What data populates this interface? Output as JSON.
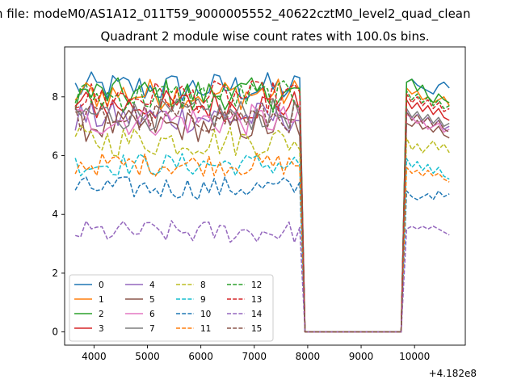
{
  "figure": {
    "suptitle": "n file: modeM0/AS1A12_011T59_9000005552_40622cztM0_level2_quad_clean"
  },
  "chart_data": {
    "type": "line",
    "title": "Quadrant 2 module wise count rates with 100.0s bins.",
    "xlabel": "",
    "ylabel": "",
    "x_offset_label": "+4.182e8",
    "xlim": [
      3450,
      10950
    ],
    "ylim": [
      -0.45,
      9.7
    ],
    "xticks": [
      4000,
      5000,
      6000,
      7000,
      8000,
      9000,
      10000
    ],
    "yticks": [
      0,
      2,
      4,
      6,
      8
    ],
    "grid": false,
    "legend_position": "lower-left",
    "legend_columns": 4,
    "x_start": 3650,
    "x_step": 100,
    "n_points": 71,
    "gap_start_index": 43,
    "gap_end_index": 61,
    "colors": [
      "#1f77b4",
      "#ff7f0e",
      "#2ca02c",
      "#d62728",
      "#9467bd",
      "#8c564b",
      "#e377c2",
      "#7f7f7f",
      "#bcbd22",
      "#17becf",
      "#1f77b4",
      "#ff7f0e",
      "#2ca02c",
      "#d62728",
      "#9467bd",
      "#8c564b"
    ],
    "series": [
      {
        "name": "0",
        "dashed": false,
        "mean": 8.3,
        "values_after_gap": [
          8.5,
          8.6,
          8.4,
          8.3,
          8.2,
          8.1,
          8.4,
          8.5,
          8.3,
          7.6
        ]
      },
      {
        "name": "1",
        "dashed": false,
        "mean": 8.1,
        "values_after_gap": [
          8.3,
          8.1,
          8.2,
          7.9,
          8.0,
          7.8,
          7.9,
          8.0,
          7.7,
          7.4
        ]
      },
      {
        "name": "2",
        "dashed": false,
        "mean": 8.1,
        "values_after_gap": [
          8.5,
          8.6,
          8.2,
          8.4,
          8.0,
          7.8,
          8.1,
          7.9,
          7.8,
          7.5
        ]
      },
      {
        "name": "3",
        "dashed": false,
        "mean": 7.7,
        "values_after_gap": [
          7.9,
          7.6,
          7.8,
          7.5,
          7.7,
          7.4,
          7.6,
          7.3,
          7.2,
          6.8
        ]
      },
      {
        "name": "4",
        "dashed": false,
        "mean": 7.3,
        "values_after_gap": [
          7.5,
          7.2,
          7.4,
          7.1,
          7.3,
          7.0,
          7.2,
          6.9,
          7.0,
          6.6
        ]
      },
      {
        "name": "5",
        "dashed": false,
        "mean": 7.0,
        "values_after_gap": [
          7.1,
          7.0,
          7.2,
          6.9,
          7.0,
          6.8,
          7.0,
          6.7,
          6.6,
          6.2
        ]
      },
      {
        "name": "6",
        "dashed": false,
        "mean": 7.2,
        "values_after_gap": [
          7.4,
          7.3,
          7.1,
          7.2,
          6.9,
          7.0,
          7.1,
          6.8,
          6.9,
          6.5
        ]
      },
      {
        "name": "7",
        "dashed": false,
        "mean": 7.4,
        "values_after_gap": [
          7.6,
          7.3,
          7.5,
          7.2,
          7.4,
          7.1,
          7.3,
          7.0,
          7.1,
          6.7
        ]
      },
      {
        "name": "8",
        "dashed": true,
        "mean": 6.5,
        "values_after_gap": [
          6.6,
          6.2,
          6.4,
          6.1,
          6.3,
          6.5,
          6.2,
          6.4,
          6.1,
          5.9
        ]
      },
      {
        "name": "9",
        "dashed": true,
        "mean": 5.7,
        "values_after_gap": [
          5.9,
          5.6,
          5.8,
          5.5,
          5.7,
          5.4,
          5.6,
          5.3,
          5.2,
          4.9
        ]
      },
      {
        "name": "10",
        "dashed": true,
        "mean": 4.9,
        "values_after_gap": [
          4.8,
          4.6,
          4.5,
          4.6,
          4.7,
          4.5,
          4.8,
          4.6,
          4.7,
          4.1
        ]
      },
      {
        "name": "11",
        "dashed": true,
        "mean": 5.7,
        "values_after_gap": [
          5.6,
          5.4,
          5.5,
          5.3,
          5.5,
          5.3,
          5.4,
          5.2,
          5.1,
          5.0
        ]
      },
      {
        "name": "12",
        "dashed": true,
        "mean": 8.0,
        "values_after_gap": [
          8.2,
          7.9,
          8.1,
          7.8,
          8.0,
          7.7,
          7.9,
          7.6,
          7.7,
          7.3
        ]
      },
      {
        "name": "13",
        "dashed": true,
        "mean": 8.0,
        "values_after_gap": [
          8.1,
          7.8,
          8.0,
          7.7,
          7.9,
          7.6,
          7.8,
          7.5,
          7.6,
          7.2
        ]
      },
      {
        "name": "14",
        "dashed": true,
        "mean": 3.4,
        "values_after_gap": [
          3.5,
          3.6,
          3.5,
          3.6,
          3.5,
          3.6,
          3.5,
          3.4,
          3.3,
          2.9
        ]
      },
      {
        "name": "15",
        "dashed": true,
        "mean": 7.3,
        "values_after_gap": [
          7.5,
          7.2,
          7.4,
          7.1,
          7.3,
          7.0,
          7.2,
          6.9,
          6.8,
          6.5
        ]
      }
    ]
  }
}
